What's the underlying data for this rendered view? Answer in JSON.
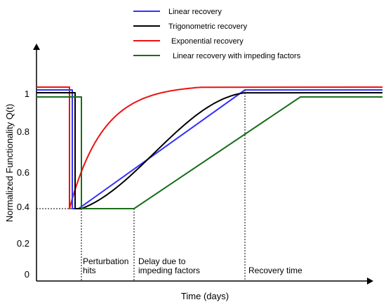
{
  "chart_data": {
    "type": "line",
    "xlabel": "Time (days)",
    "ylabel": "Normalized Functionality Q(t)",
    "y_ticks": [
      "0",
      "0.2",
      "0.4",
      "0.6",
      "0.8",
      "1"
    ],
    "legend_placement": "top-center",
    "grid": false,
    "series": [
      {
        "name": "Linear recovery",
        "color": "#3333ff"
      },
      {
        "name": "Trigonometric recovery",
        "color": "#000000"
      },
      {
        "name": "Exponential recovery",
        "color": "#ee1111"
      },
      {
        "name": "Linear recovery with impeding factors",
        "color": "#1a6e1a"
      }
    ],
    "annotations": [
      {
        "lines": [
          "Perturbation",
          "hits"
        ]
      },
      {
        "lines": [
          "Delay due to",
          "impeding factors"
        ]
      },
      {
        "lines": [
          "Recovery time"
        ]
      }
    ]
  }
}
